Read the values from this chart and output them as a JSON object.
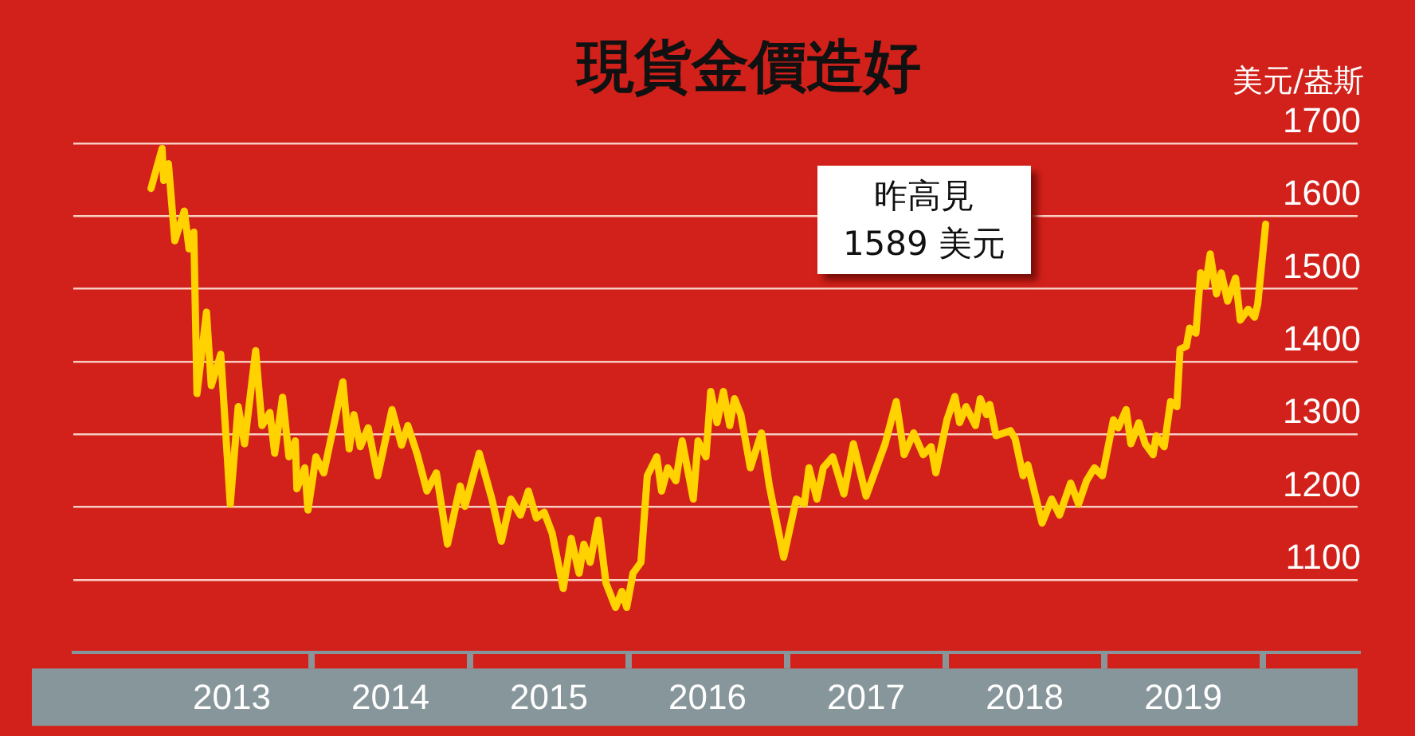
{
  "chart_data": {
    "type": "line",
    "title": "現貨金價造好",
    "ylabel": "美元/盎斯",
    "annotations": [
      "昨高見\n1589 美元"
    ],
    "x": [
      2012.99,
      2013.06,
      2013.07,
      2013.1,
      2013.14,
      2013.2,
      2013.23,
      2013.26,
      2013.28,
      2013.34,
      2013.37,
      2013.43,
      2013.49,
      2013.54,
      2013.58,
      2013.65,
      2013.69,
      2013.74,
      2013.77,
      2013.82,
      2013.86,
      2013.9,
      2013.91,
      2013.96,
      2013.98,
      2014.03,
      2014.08,
      2014.2,
      2014.24,
      2014.27,
      2014.31,
      2014.36,
      2014.42,
      2014.51,
      2014.57,
      2014.61,
      2014.67,
      2014.73,
      2014.79,
      2014.86,
      2014.94,
      2014.97,
      2015.06,
      2015.14,
      2015.2,
      2015.26,
      2015.32,
      2015.37,
      2015.42,
      2015.47,
      2015.52,
      2015.59,
      2015.64,
      2015.69,
      2015.72,
      2015.76,
      2015.81,
      2015.86,
      2015.92,
      2015.96,
      2015.99,
      2016.03,
      2016.08,
      2016.12,
      2016.18,
      2016.21,
      2016.25,
      2016.3,
      2016.34,
      2016.41,
      2016.44,
      2016.49,
      2016.52,
      2016.56,
      2016.6,
      2016.64,
      2016.67,
      2016.71,
      2016.77,
      2016.84,
      2016.89,
      2016.98,
      2017.06,
      2017.11,
      2017.14,
      2017.19,
      2017.23,
      2017.29,
      2017.36,
      2017.42,
      2017.5,
      2017.62,
      2017.69,
      2017.74,
      2017.8,
      2017.86,
      2017.91,
      2017.94,
      2018.01,
      2018.06,
      2018.09,
      2018.13,
      2018.19,
      2018.22,
      2018.26,
      2018.28,
      2018.32,
      2018.41,
      2018.44,
      2018.49,
      2018.52,
      2018.61,
      2018.67,
      2018.72,
      2018.79,
      2018.84,
      2018.89,
      2018.94,
      2018.99,
      2019.06,
      2019.09,
      2019.14,
      2019.17,
      2019.22,
      2019.26,
      2019.31,
      2019.33,
      2019.38,
      2019.42,
      2019.46,
      2019.48,
      2019.52,
      2019.54,
      2019.58,
      2019.61,
      2019.64,
      2019.67,
      2019.71,
      2019.74,
      2019.78,
      2019.83,
      2019.86,
      2019.91,
      2019.95,
      2019.97,
      2020.02
    ],
    "series": [
      {
        "color": "#ffd200",
        "values": [
          1638,
          1693,
          1649,
          1672,
          1566,
          1607,
          1555,
          1578,
          1356,
          1468,
          1367,
          1410,
          1204,
          1338,
          1287,
          1415,
          1312,
          1330,
          1274,
          1351,
          1269,
          1291,
          1225,
          1254,
          1196,
          1269,
          1247,
          1372,
          1280,
          1327,
          1283,
          1309,
          1243,
          1334,
          1285,
          1312,
          1272,
          1222,
          1247,
          1149,
          1229,
          1201,
          1274,
          1211,
          1153,
          1211,
          1189,
          1222,
          1185,
          1193,
          1164,
          1088,
          1157,
          1109,
          1149,
          1124,
          1182,
          1095,
          1062,
          1084,
          1062,
          1109,
          1124,
          1243,
          1269,
          1222,
          1254,
          1236,
          1291,
          1211,
          1291,
          1269,
          1359,
          1316,
          1359,
          1312,
          1349,
          1327,
          1254,
          1302,
          1229,
          1131,
          1211,
          1204,
          1254,
          1211,
          1254,
          1269,
          1218,
          1287,
          1215,
          1287,
          1345,
          1272,
          1302,
          1272,
          1283,
          1247,
          1320,
          1352,
          1316,
          1338,
          1312,
          1349,
          1327,
          1341,
          1298,
          1305,
          1294,
          1243,
          1258,
          1178,
          1211,
          1189,
          1233,
          1204,
          1236,
          1254,
          1243,
          1320,
          1309,
          1334,
          1287,
          1316,
          1287,
          1272,
          1298,
          1283,
          1345,
          1338,
          1417,
          1421,
          1446,
          1439,
          1522,
          1504,
          1548,
          1493,
          1522,
          1483,
          1515,
          1457,
          1472,
          1461,
          1479,
          1589
        ]
      }
    ],
    "xlim": [
      2012.5,
      2020.6
    ],
    "xticks": [
      {
        "value": 2013.5,
        "label": "2013"
      },
      {
        "value": 2014,
        "label": null
      },
      {
        "value": 2014.5,
        "label": "2014"
      },
      {
        "value": 2015,
        "label": null
      },
      {
        "value": 2015.5,
        "label": "2015"
      },
      {
        "value": 2016,
        "label": null
      },
      {
        "value": 2016.5,
        "label": "2016"
      },
      {
        "value": 2017,
        "label": null
      },
      {
        "value": 2017.5,
        "label": "2017"
      },
      {
        "value": 2018,
        "label": null
      },
      {
        "value": 2018.5,
        "label": "2018"
      },
      {
        "value": 2019,
        "label": null
      },
      {
        "value": 2019.5,
        "label": "2019"
      },
      {
        "value": 2020,
        "label": null
      }
    ],
    "ylim": [
      1000,
      1700
    ],
    "yticks": [
      1100,
      1200,
      1300,
      1400,
      1500,
      1600,
      1700
    ],
    "grid": "y",
    "marker": "none",
    "legend": false
  }
}
